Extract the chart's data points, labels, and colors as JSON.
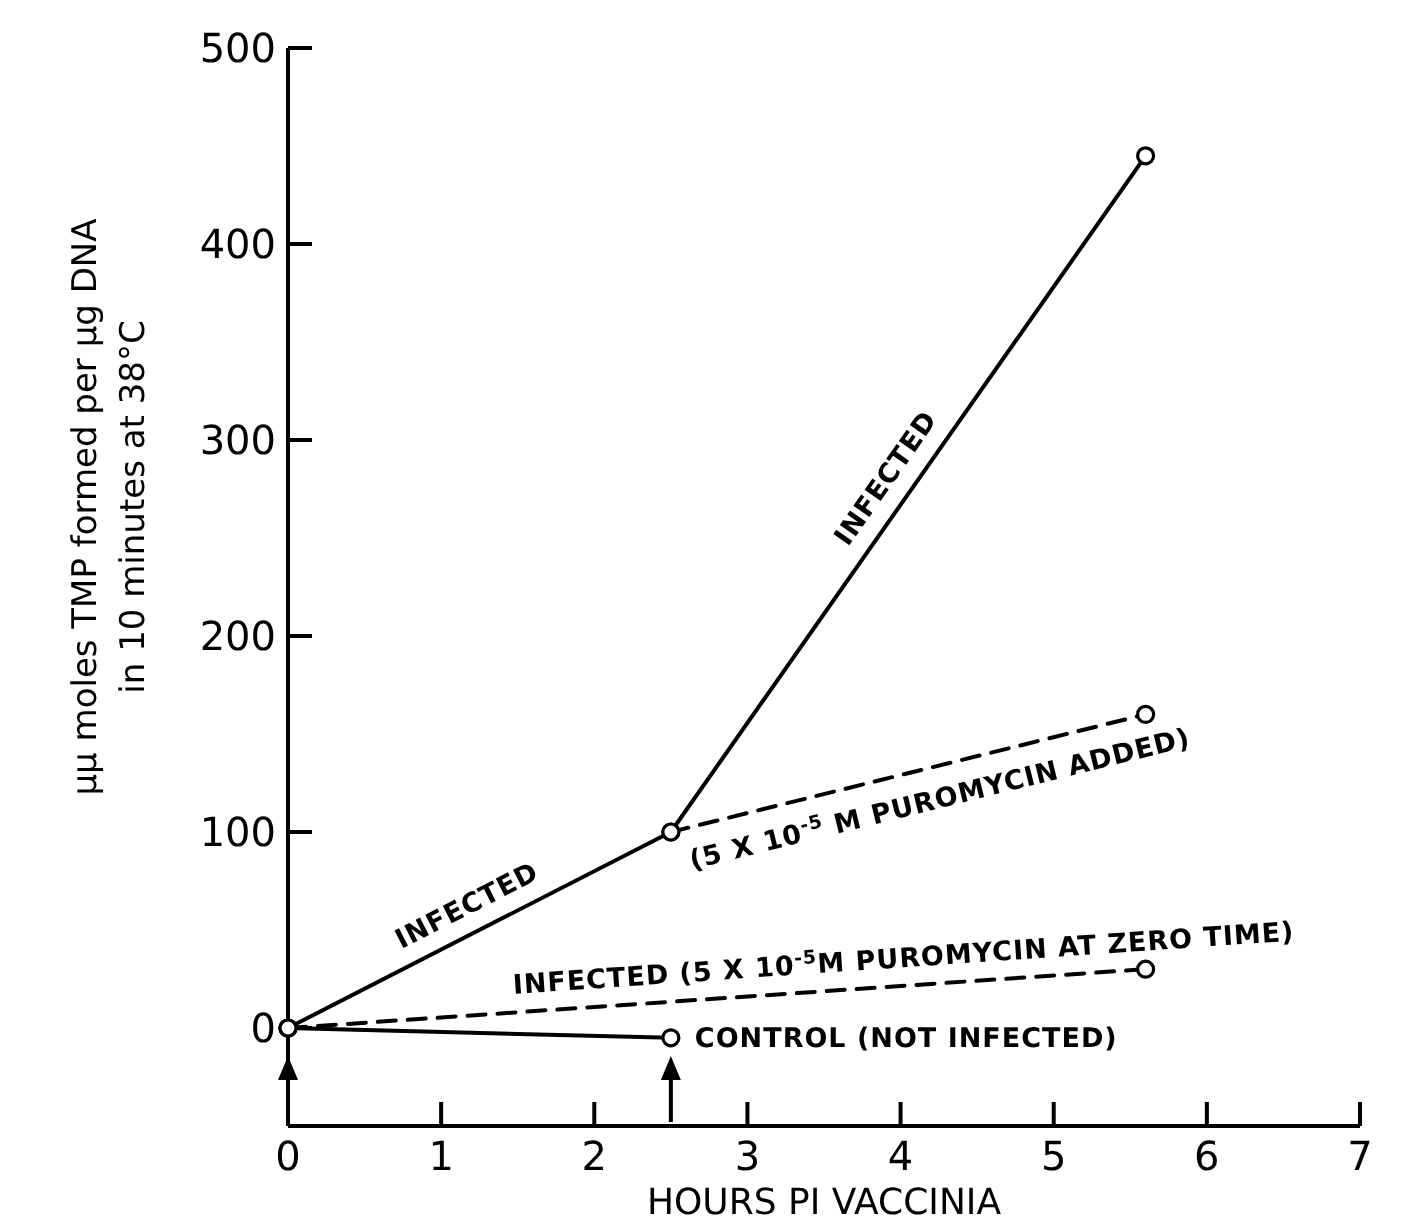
{
  "chart_data": {
    "type": "line",
    "xlabel": "HOURS PI VACCINIA",
    "ylabel": "μμ moles TMP formed per μg DNA\nin 10 minutes at 38°C",
    "xlim": [
      0,
      7
    ],
    "xticks": [
      0,
      1,
      2,
      3,
      4,
      5,
      6,
      7
    ],
    "ylim": [
      -50,
      500
    ],
    "yticks": [
      0,
      100,
      200,
      300,
      400,
      500
    ],
    "grid": false,
    "legend": false,
    "marker": "circle",
    "series": [
      {
        "name": "INFECTED",
        "color": "#000000",
        "x": [
          0,
          2.5,
          5.6
        ],
        "values": [
          0,
          100,
          445
        ],
        "line_style": "solid"
      },
      {
        "name": "(5 X 10$^{-5}$ M PUROMYCIN ADDED)",
        "color": "#000000",
        "x": [
          2.5,
          5.6
        ],
        "values": [
          100,
          160
        ],
        "line_style": "dashed"
      },
      {
        "name": "INFECTED (5 X 10$^{-5}$M PUROMYCIN AT ZERO TIME)",
        "color": "#000000",
        "x": [
          0,
          5.6
        ],
        "values": [
          0,
          30
        ],
        "line_style": "dashed"
      },
      {
        "name": "CONTROL (NOT INFECTED)",
        "color": "#000000",
        "x": [
          0,
          2.5
        ],
        "values": [
          0,
          -5
        ],
        "line_style": "solid"
      }
    ]
  }
}
